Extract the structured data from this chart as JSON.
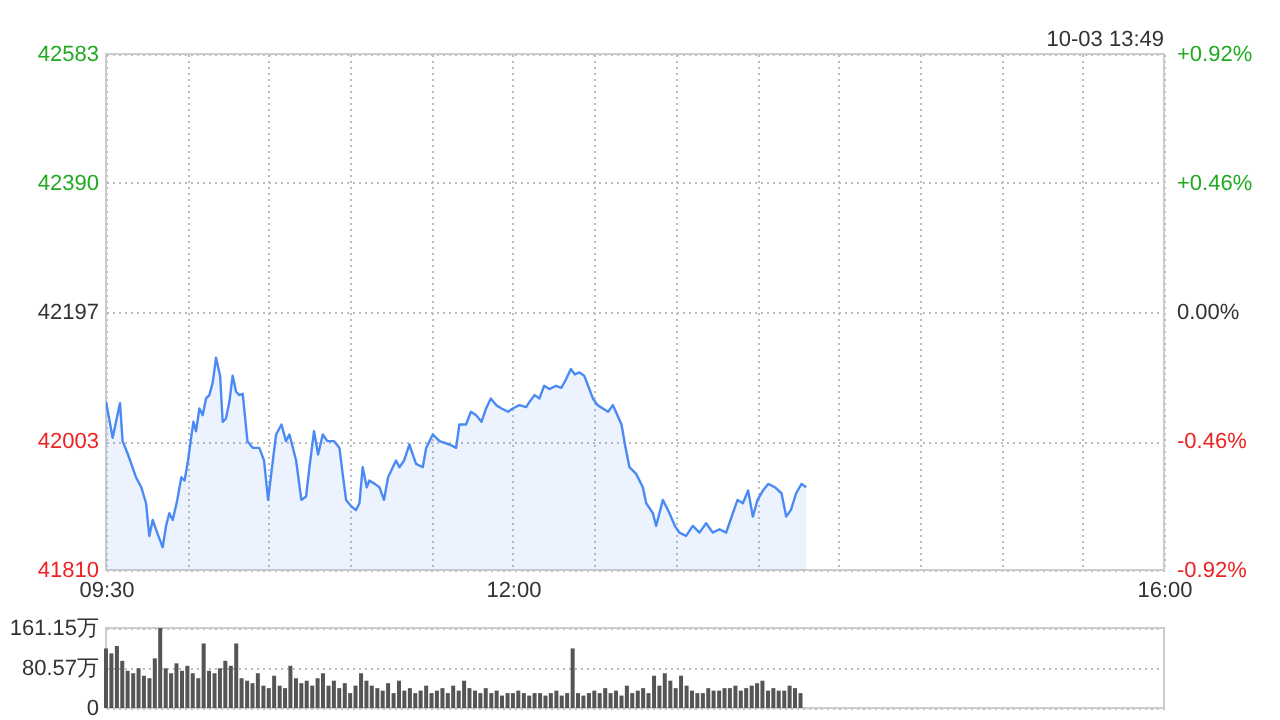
{
  "chart_data": [
    {
      "type": "area",
      "series": [
        {
          "color": "#4a8af4",
          "x": [
            9.5,
            9.541,
            9.586,
            9.602,
            9.635,
            9.684,
            9.717,
            9.746,
            9.766,
            9.787,
            9.807,
            9.848,
            9.869,
            9.889,
            9.91,
            9.938,
            9.963,
            9.983,
            10.004,
            10.02,
            10.037,
            10.053,
            10.074,
            10.094,
            10.115,
            10.135,
            10.156,
            10.176,
            10.201,
            10.217,
            10.237,
            10.258,
            10.278,
            10.299,
            10.319,
            10.34,
            10.369,
            10.401,
            10.442,
            10.471,
            10.496,
            10.52,
            10.545,
            10.578,
            10.606,
            10.627,
            10.668,
            10.7,
            10.729,
            10.75,
            10.778,
            10.803,
            10.832,
            10.86,
            10.901,
            10.934,
            10.954,
            10.975,
            11.008,
            11.036,
            11.057,
            11.077,
            11.102,
            11.118,
            11.151,
            11.18,
            11.208,
            11.233,
            11.262,
            11.282,
            11.303,
            11.331,
            11.364,
            11.385,
            11.405,
            11.446,
            11.467,
            11.508,
            11.549,
            11.61,
            11.651,
            11.671,
            11.712,
            11.741,
            11.774,
            11.807,
            11.835,
            11.864,
            11.897,
            11.93,
            11.97,
            11.999,
            12.04,
            12.081,
            12.102,
            12.134,
            12.163,
            12.192,
            12.224,
            12.265,
            12.298,
            12.327,
            12.356,
            12.38,
            12.409,
            12.438,
            12.462,
            12.491,
            12.52,
            12.552,
            12.585,
            12.614,
            12.642,
            12.667,
            12.692,
            12.716,
            12.757,
            12.798,
            12.819,
            12.86,
            12.88,
            12.921,
            12.962,
            12.995,
            13.023,
            13.064,
            13.105,
            13.146,
            13.187,
            13.228,
            13.269,
            13.31,
            13.351,
            13.38,
            13.413,
            13.445,
            13.474,
            13.503,
            13.536,
            13.568,
            13.609,
            13.65,
            13.679,
            13.708,
            13.74,
            13.773,
            13.802
          ],
          "values": [
            42062,
            42008,
            42060,
            42003,
            41983,
            41949,
            41934,
            41910,
            41861,
            41885,
            41871,
            41844,
            41876,
            41895,
            41885,
            41915,
            41949,
            41944,
            41974,
            42003,
            42032,
            42018,
            42052,
            42042,
            42067,
            42072,
            42091,
            42128,
            42101,
            42032,
            42037,
            42062,
            42101,
            42077,
            42072,
            42074,
            42003,
            41993,
            41993,
            41974,
            41915,
            41964,
            42013,
            42028,
            42003,
            42013,
            41974,
            41915,
            41920,
            41964,
            42018,
            41983,
            42013,
            42003,
            42003,
            41993,
            41954,
            41915,
            41905,
            41900,
            41910,
            41964,
            41934,
            41944,
            41939,
            41934,
            41915,
            41949,
            41964,
            41974,
            41964,
            41974,
            41998,
            41983,
            41969,
            41964,
            41993,
            42013,
            42003,
            41998,
            41993,
            42028,
            42028,
            42047,
            42042,
            42032,
            42052,
            42067,
            42057,
            42052,
            42047,
            42052,
            42057,
            42054,
            42062,
            42072,
            42067,
            42086,
            42081,
            42086,
            42083,
            42096,
            42111,
            42103,
            42106,
            42101,
            42086,
            42067,
            42057,
            42052,
            42047,
            42057,
            42042,
            42028,
            41993,
            41964,
            41954,
            41934,
            41910,
            41895,
            41876,
            41915,
            41895,
            41876,
            41866,
            41861,
            41876,
            41866,
            41880,
            41866,
            41871,
            41866,
            41895,
            41915,
            41910,
            41929,
            41890,
            41915,
            41929,
            41939,
            41934,
            41925,
            41890,
            41900,
            41925,
            41939,
            41934
          ]
        }
      ],
      "xlim": [
        9.5,
        16
      ],
      "xticks": [
        {
          "value": 9.5,
          "label": "09:30"
        },
        {
          "value": 10,
          "label": null
        },
        {
          "value": 10.5,
          "label": null
        },
        {
          "value": 11,
          "label": null
        },
        {
          "value": 11.5,
          "label": null
        },
        {
          "value": 12,
          "label": "12:00"
        },
        {
          "value": 12.5,
          "label": null
        },
        {
          "value": 13,
          "label": null
        },
        {
          "value": 13.5,
          "label": null
        },
        {
          "value": 14,
          "label": null
        },
        {
          "value": 14.5,
          "label": null
        },
        {
          "value": 15,
          "label": null
        },
        {
          "value": 15.5,
          "label": null
        },
        {
          "value": 16,
          "label": "16:00"
        }
      ],
      "ylim": [
        41810,
        42583
      ],
      "yticks": [
        41810,
        42003,
        42197,
        42390,
        42583
      ],
      "y2lim": [
        -0.92,
        0.92
      ],
      "y2ticks": [
        {
          "value": -0.92,
          "label": "-0.92%"
        },
        {
          "value": -0.46,
          "label": "-0.46%"
        },
        {
          "value": 0,
          "label": "0.00%"
        },
        {
          "value": 0.46,
          "label": "+0.46%"
        },
        {
          "value": 0.92,
          "label": "+0.92%"
        }
      ],
      "grid": true,
      "annotations": [
        "10-03 13:49"
      ]
    },
    {
      "type": "bar",
      "series": [
        {
          "color": "#555555",
          "x": [
            9.5,
            9.533,
            9.567,
            9.6,
            9.633,
            9.667,
            9.7,
            9.733,
            9.767,
            9.8,
            9.833,
            9.867,
            9.9,
            9.933,
            9.967,
            10.0,
            10.033,
            10.067,
            10.1,
            10.133,
            10.167,
            10.2,
            10.233,
            10.267,
            10.3,
            10.333,
            10.367,
            10.4,
            10.433,
            10.467,
            10.5,
            10.533,
            10.567,
            10.6,
            10.633,
            10.667,
            10.7,
            10.733,
            10.767,
            10.8,
            10.833,
            10.867,
            10.9,
            10.933,
            10.967,
            11.0,
            11.033,
            11.067,
            11.1,
            11.133,
            11.167,
            11.2,
            11.233,
            11.267,
            11.3,
            11.333,
            11.367,
            11.4,
            11.433,
            11.467,
            11.5,
            11.533,
            11.567,
            11.6,
            11.633,
            11.667,
            11.7,
            11.733,
            11.767,
            11.8,
            11.833,
            11.867,
            11.9,
            11.933,
            11.967,
            12.0,
            12.033,
            12.067,
            12.1,
            12.133,
            12.167,
            12.2,
            12.233,
            12.267,
            12.3,
            12.333,
            12.367,
            12.4,
            12.433,
            12.467,
            12.5,
            12.533,
            12.567,
            12.6,
            12.633,
            12.667,
            12.7,
            12.733,
            12.767,
            12.8,
            12.833,
            12.867,
            12.9,
            12.933,
            12.967,
            13.0,
            13.033,
            13.067,
            13.1,
            13.133,
            13.167,
            13.2,
            13.233,
            13.267,
            13.3,
            13.333,
            13.367,
            13.4,
            13.433,
            13.467,
            13.5,
            13.533,
            13.567,
            13.6,
            13.633,
            13.667,
            13.7,
            13.733,
            13.767
          ],
          "values": [
            120,
            110,
            125,
            95,
            75,
            70,
            80,
            65,
            60,
            100,
            161,
            80,
            70,
            90,
            75,
            85,
            70,
            60,
            130,
            75,
            70,
            80,
            95,
            85,
            130,
            60,
            55,
            50,
            70,
            45,
            40,
            65,
            45,
            40,
            85,
            60,
            50,
            55,
            45,
            60,
            70,
            45,
            55,
            40,
            50,
            30,
            45,
            70,
            55,
            45,
            40,
            35,
            50,
            30,
            55,
            35,
            40,
            30,
            35,
            45,
            30,
            35,
            40,
            30,
            45,
            35,
            55,
            40,
            35,
            30,
            40,
            30,
            35,
            25,
            30,
            30,
            35,
            30,
            25,
            30,
            30,
            25,
            30,
            35,
            25,
            30,
            120,
            30,
            25,
            30,
            35,
            30,
            40,
            30,
            35,
            25,
            45,
            30,
            35,
            40,
            30,
            65,
            45,
            70,
            55,
            40,
            65,
            45,
            35,
            30,
            30,
            40,
            35,
            35,
            40,
            40,
            45,
            35,
            40,
            45,
            50,
            55,
            35,
            40,
            35,
            35,
            45,
            40,
            30
          ]
        }
      ],
      "xlim": [
        9.5,
        16
      ],
      "ylim": [
        0,
        161.15
      ],
      "yticks": [
        0,
        {
          "value": 80.57,
          "label": "80.57万"
        },
        {
          "value": 161.15,
          "label": "161.15万"
        }
      ],
      "tick_labels": "y",
      "grid": "y"
    }
  ]
}
